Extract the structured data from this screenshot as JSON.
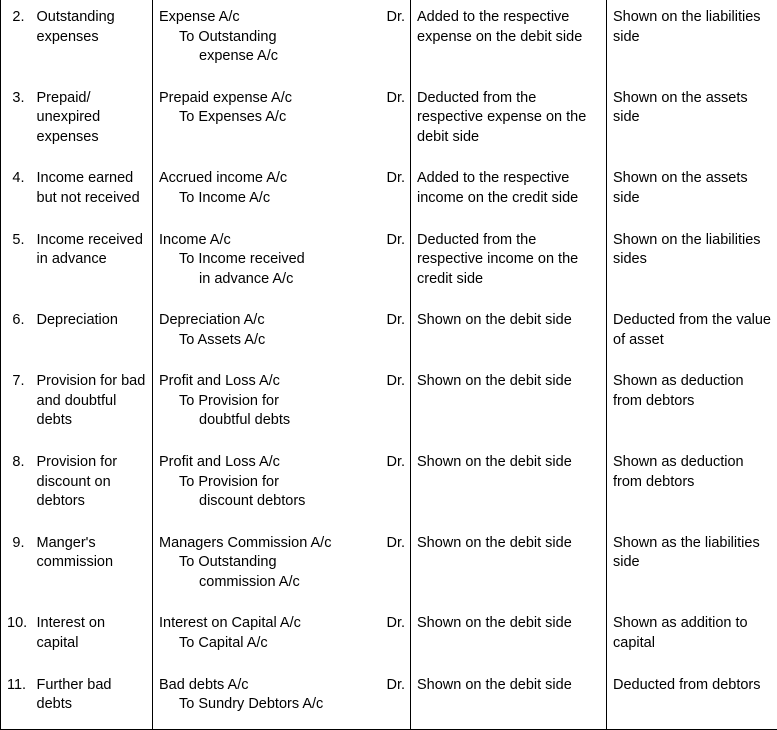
{
  "rows": [
    {
      "num": "2.",
      "item": "Outstanding expenses",
      "entry_main": "Expense A/c",
      "entry_sub": "To Outstanding",
      "entry_sub2": "expense A/c",
      "dr": "Dr.",
      "effect1": "Added to the respective expense on the debit side",
      "effect2": "Shown on the liabilities side"
    },
    {
      "num": "3.",
      "item": "Prepaid/ unexpired expenses",
      "entry_main": "Prepaid expense A/c",
      "entry_sub": "To Expenses A/c",
      "entry_sub2": "",
      "dr": "Dr.",
      "effect1": "Deducted from the respective expense on the debit side",
      "effect2": "Shown on the assets side"
    },
    {
      "num": "4.",
      "item": "Income earned but not received",
      "entry_main": "Accrued income A/c",
      "entry_sub": "To Income A/c",
      "entry_sub2": "",
      "dr": "Dr.",
      "effect1": "Added to the respective income on the credit side",
      "effect2": "Shown on the assets side"
    },
    {
      "num": "5.",
      "item": "Income received in advance",
      "entry_main": "Income A/c",
      "entry_sub": "To Income received",
      "entry_sub2": "in advance A/c",
      "dr": "Dr.",
      "effect1": "Deducted from the respective income on the credit side",
      "effect2": "Shown on the liabilities sides"
    },
    {
      "num": "6.",
      "item": "Depreciation",
      "entry_main": "Depreciation A/c",
      "entry_sub": "To Assets A/c",
      "entry_sub2": "",
      "dr": "Dr.",
      "effect1": "Shown on the debit side",
      "effect2": "Deducted from the value of asset"
    },
    {
      "num": "7.",
      "item": "Provision for bad and doubtful debts",
      "entry_main": "Profit and Loss A/c",
      "entry_sub": "To Provision for",
      "entry_sub2": "doubtful debts",
      "dr": "Dr.",
      "effect1": "Shown on the debit side",
      "effect2": "Shown as deduction from debtors"
    },
    {
      "num": "8.",
      "item": "Provision for discount on debtors",
      "entry_main": "Profit and Loss A/c",
      "entry_sub": "To Provision for",
      "entry_sub2": "discount debtors",
      "dr": "Dr.",
      "effect1": "Shown on the debit side",
      "effect2": "Shown as deduction from debtors"
    },
    {
      "num": "9.",
      "item": "Manger's commission",
      "entry_main": "Managers Commission A/c",
      "entry_sub": "To Outstanding",
      "entry_sub2": "commission A/c",
      "dr": "Dr.",
      "effect1": "Shown on the debit side",
      "effect2": "Shown as the liabilities side"
    },
    {
      "num": "10.",
      "item": "Interest on capital",
      "entry_main": "Interest on Capital A/c",
      "entry_sub": "To Capital A/c",
      "entry_sub2": "",
      "dr": "Dr.",
      "effect1": "Shown on the debit side",
      "effect2": "Shown as addition to capital"
    },
    {
      "num": "11.",
      "item": "Further bad debts",
      "entry_main": "Bad debts A/c",
      "entry_sub": "To Sundry Debtors A/c",
      "entry_sub2": "",
      "dr": "Dr.",
      "effect1": "Shown on the debit side",
      "effect2": "Deducted from debtors"
    }
  ]
}
